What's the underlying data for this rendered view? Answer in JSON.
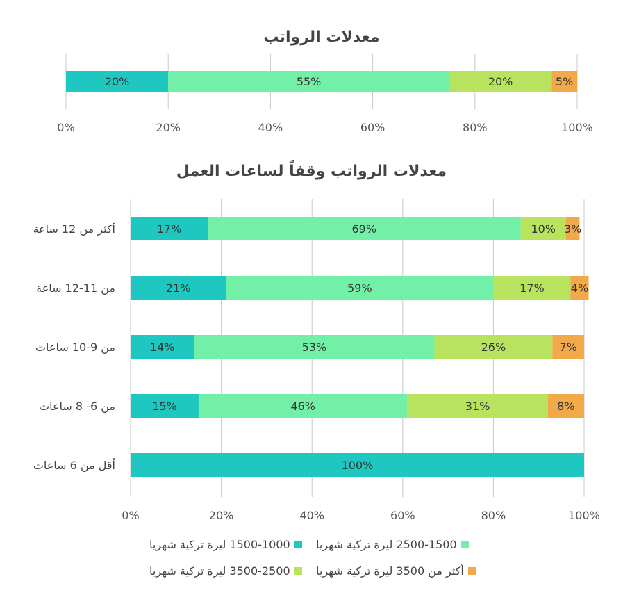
{
  "chart_data": [
    {
      "type": "bar",
      "orientation": "horizontal",
      "stacked": "percent",
      "title": "معدلات الرواتب",
      "categories": [
        ""
      ],
      "series": [
        {
          "name": "1500-1000 ليرة تركية شهريا",
          "values": [
            20
          ],
          "labels": [
            "20%"
          ]
        },
        {
          "name": "2500-1500 ليرة تركية شهريا",
          "values": [
            55
          ],
          "labels": [
            "55%"
          ]
        },
        {
          "name": "3500-2500 ليرة تركية شهريا",
          "values": [
            20
          ],
          "labels": [
            "20%"
          ]
        },
        {
          "name": "أكثر من 3500 ليرة تركية شهريا",
          "values": [
            5
          ],
          "labels": [
            "5%"
          ]
        }
      ],
      "xlim": [
        0,
        100
      ],
      "xticks": [
        "0%",
        "20%",
        "40%",
        "60%",
        "80%",
        "100%"
      ],
      "grid": true
    },
    {
      "type": "bar",
      "orientation": "horizontal",
      "stacked": "percent",
      "title": "معدلات الرواتب وقفاً لساعات العمل",
      "categories": [
        "أكثر من 12 ساعة",
        "من 11-12 ساعة",
        "من 9-10 ساعات",
        "من 6- 8 ساعات",
        "أقل  من  6 ساعات"
      ],
      "series": [
        {
          "name": "1500-1000 ليرة تركية شهريا",
          "values": [
            17,
            21,
            14,
            15,
            100
          ],
          "labels": [
            "17%",
            "21%",
            "14%",
            "15%",
            "100%"
          ]
        },
        {
          "name": "2500-1500 ليرة تركية شهريا",
          "values": [
            69,
            59,
            53,
            46,
            0
          ],
          "labels": [
            "69%",
            "59%",
            "53%",
            "46%",
            ""
          ]
        },
        {
          "name": "3500-2500 ليرة تركية شهريا",
          "values": [
            10,
            17,
            26,
            31,
            0
          ],
          "labels": [
            "10%",
            "17%",
            "26%",
            "31%",
            ""
          ]
        },
        {
          "name": "أكثر من 3500 ليرة تركية شهريا",
          "values": [
            3,
            4,
            7,
            8,
            0
          ],
          "labels": [
            "3%",
            "4%",
            "7%",
            "8%",
            ""
          ]
        }
      ],
      "xlim": [
        0,
        100
      ],
      "xticks": [
        "0%",
        "20%",
        "40%",
        "60%",
        "80%",
        "100%"
      ],
      "grid": true,
      "legend": "bottom"
    }
  ],
  "colors": [
    "#1ec8c0",
    "#72f0a8",
    "#b8e35e",
    "#f2a94a"
  ]
}
